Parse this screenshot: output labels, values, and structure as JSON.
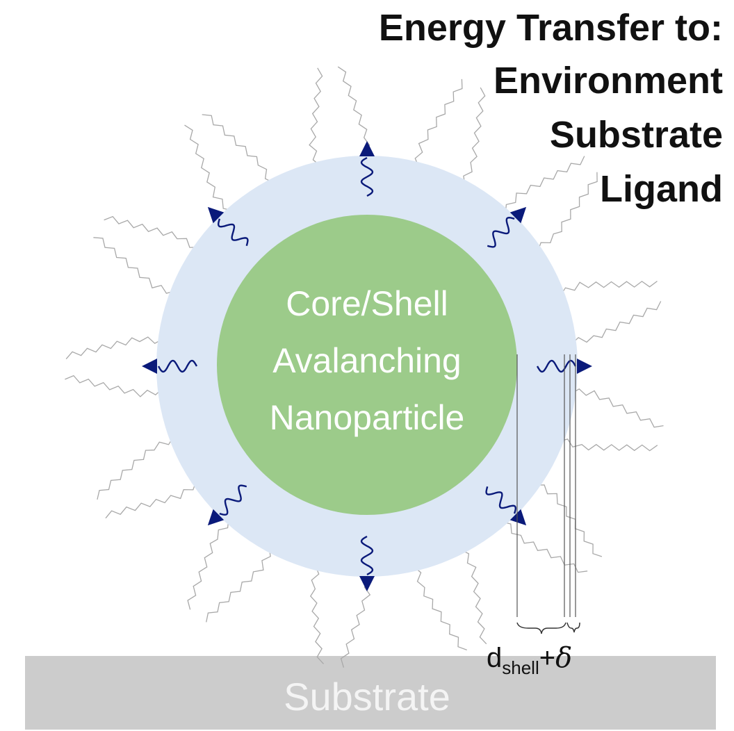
{
  "title": {
    "line1": "Energy Transfer to:",
    "line2": "Environment",
    "line3": "Substrate",
    "line4": "Ligand"
  },
  "core": {
    "line1": "Core/Shell",
    "line2": "Avalanching",
    "line3": "Nanoparticle"
  },
  "substrate": {
    "label": "Substrate"
  },
  "dimension": {
    "main": "d",
    "sub": "shell",
    "plus": "+",
    "delta": "δ"
  },
  "colors": {
    "shell": "#dce7f5",
    "core": "#9ccb8a",
    "substrate": "#cccccc",
    "arrow": "#0a1a7a",
    "ligand": "#a8a8a8"
  }
}
